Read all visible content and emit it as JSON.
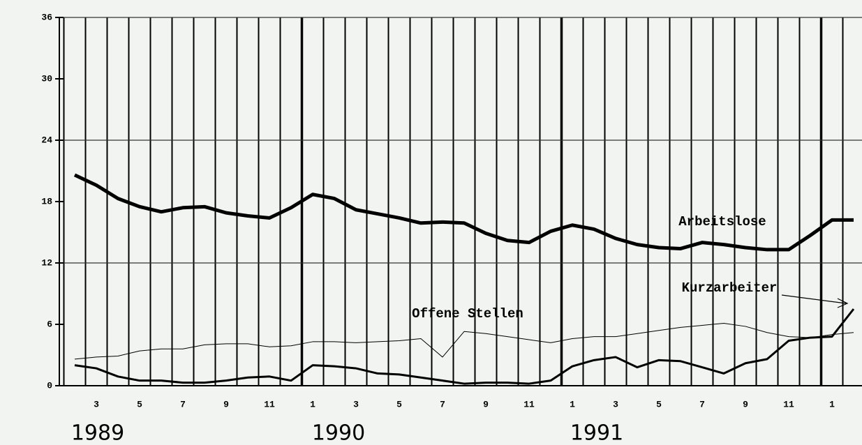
{
  "chart_data": {
    "type": "line",
    "categories": [
      null,
      "3",
      null,
      "5",
      null,
      "7",
      null,
      "9",
      null,
      "11",
      null,
      "1",
      null,
      "3",
      null,
      "5",
      null,
      "7",
      null,
      "9",
      null,
      "11",
      null,
      "1",
      null,
      "3",
      null,
      "5",
      null,
      "7",
      null,
      "9",
      null,
      "11",
      null,
      "1",
      null
    ],
    "years": [
      "1989",
      "1990",
      "1991"
    ],
    "ylim": [
      0,
      36
    ],
    "yticks": [
      0,
      6,
      12,
      18,
      24,
      30,
      36
    ],
    "series": [
      {
        "name": "Arbeitslose",
        "color": "#000000",
        "width": 5,
        "values": [
          20.6,
          19.6,
          18.3,
          17.5,
          17.0,
          17.4,
          17.5,
          16.9,
          16.6,
          16.4,
          17.4,
          18.7,
          18.3,
          17.2,
          16.8,
          16.4,
          15.9,
          16.0,
          15.9,
          14.9,
          14.2,
          14.0,
          15.1,
          15.7,
          15.3,
          14.4,
          13.8,
          13.5,
          13.4,
          14.0,
          13.8,
          13.5,
          13.3,
          13.3,
          14.7,
          16.2,
          16.2
        ]
      },
      {
        "name": "Offene Stellen",
        "color": "#000000",
        "width": 1,
        "values": [
          2.6,
          2.8,
          2.9,
          3.4,
          3.6,
          3.6,
          4.0,
          4.1,
          4.1,
          3.8,
          3.9,
          4.3,
          4.3,
          4.2,
          4.3,
          4.4,
          4.6,
          2.8,
          5.3,
          5.1,
          4.8,
          4.5,
          4.2,
          4.6,
          4.8,
          4.8,
          5.1,
          5.4,
          5.7,
          5.9,
          6.1,
          5.8,
          5.2,
          4.8,
          4.7,
          5.0,
          5.2
        ]
      },
      {
        "name": "Kurzarbeiter",
        "color": "#000000",
        "width": 3,
        "values": [
          2.0,
          1.7,
          0.9,
          0.5,
          0.5,
          0.3,
          0.3,
          0.5,
          0.8,
          0.9,
          0.5,
          2.0,
          1.9,
          1.7,
          1.2,
          1.1,
          0.8,
          0.5,
          0.2,
          0.3,
          0.3,
          0.2,
          0.5,
          1.9,
          2.5,
          2.8,
          1.8,
          2.5,
          2.4,
          1.8,
          1.2,
          2.2,
          2.6,
          4.4,
          4.7,
          4.8,
          7.5
        ]
      }
    ]
  }
}
